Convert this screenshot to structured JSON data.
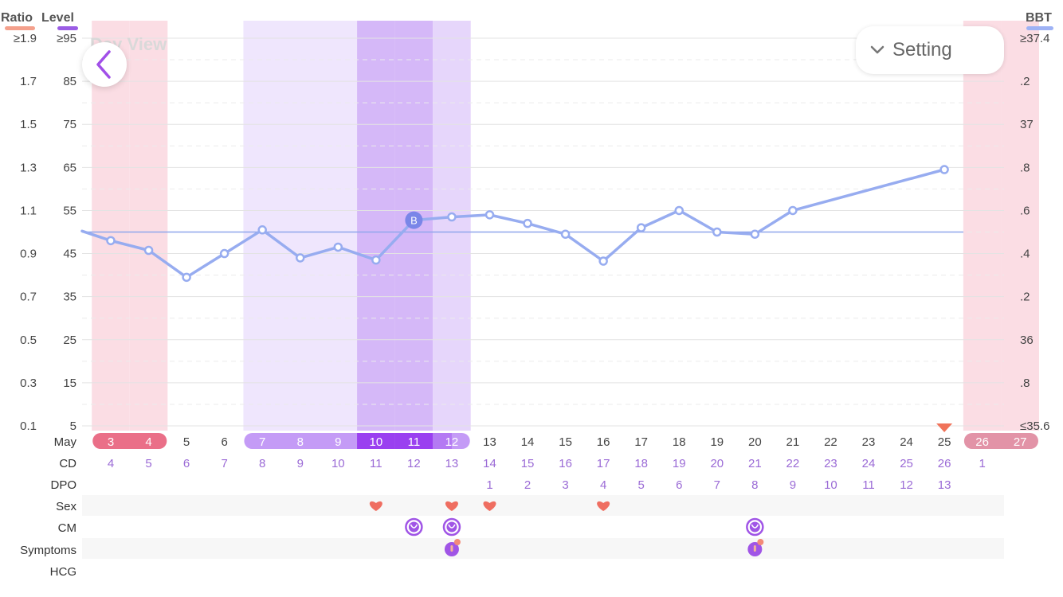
{
  "header": {
    "left_axis_titles": [
      "Ratio",
      "Level"
    ],
    "right_axis_title": "BBT",
    "watermark": "Day View",
    "setting_label": "Setting"
  },
  "legend_colors": {
    "ratio": "#f4a08c",
    "level": "#9b5de5",
    "bbt": "#9eb2f5"
  },
  "colors": {
    "period": "#fbdde4",
    "fertile": "#efe6fd",
    "peak": "#d5b8f8",
    "post_peak": "#e6d6fb",
    "line": "#97acf0",
    "coverline": "#8fa6ec",
    "period_pill": "#ea6f88",
    "next_period_pill": "#e293a7",
    "fertile_pill": "#c49bf6",
    "peak_pill": "#9a40f0",
    "row_text": "#9b6bd6",
    "heart": "#ef6e61",
    "badge": "#7a86e8"
  },
  "axes": {
    "ratio_ticks": [
      "≥1.9",
      "1.7",
      "1.5",
      "1.3",
      "1.1",
      "0.9",
      "0.7",
      "0.5",
      "0.3",
      "0.1"
    ],
    "level_ticks": [
      "≥95",
      "85",
      "75",
      "65",
      "55",
      "45",
      "35",
      "25",
      "15",
      "5"
    ],
    "bbt_ticks": [
      "≥37.4",
      ".2",
      "37",
      ".8",
      ".6",
      ".4",
      ".2",
      "36",
      ".8",
      "≤35.6"
    ]
  },
  "rows": {
    "month_label": "May",
    "cd_label": "CD",
    "dpo_label": "DPO",
    "sex_label": "Sex",
    "cm_label": "CM",
    "symptoms_label": "Symptoms",
    "hcg_label": "HCG"
  },
  "days": [
    "3",
    "4",
    "5",
    "6",
    "7",
    "8",
    "9",
    "10",
    "11",
    "12",
    "13",
    "14",
    "15",
    "16",
    "17",
    "18",
    "19",
    "20",
    "21",
    "22",
    "23",
    "24",
    "25",
    "26",
    "27"
  ],
  "cd": [
    "4",
    "5",
    "6",
    "7",
    "8",
    "9",
    "10",
    "11",
    "12",
    "13",
    "14",
    "15",
    "16",
    "17",
    "18",
    "19",
    "20",
    "21",
    "22",
    "23",
    "24",
    "25",
    "26",
    "1",
    ""
  ],
  "dpo": [
    "",
    "",
    "",
    "",
    "",
    "",
    "",
    "",
    "",
    "",
    "1",
    "2",
    "3",
    "4",
    "5",
    "6",
    "7",
    "8",
    "9",
    "10",
    "11",
    "12",
    "13",
    "",
    ""
  ],
  "day_types": [
    "period",
    "period",
    "none",
    "none",
    "fertile",
    "fertile",
    "fertile",
    "peak",
    "peak",
    "post",
    "none",
    "none",
    "none",
    "none",
    "none",
    "none",
    "none",
    "none",
    "none",
    "none",
    "none",
    "none",
    "none",
    "next",
    "next"
  ],
  "sex_days": [
    "10",
    "12",
    "13",
    "16"
  ],
  "cm_days": [
    "11",
    "12",
    "20"
  ],
  "symptom_days": [
    "12",
    "20"
  ],
  "chart_data": {
    "type": "line",
    "series": [
      {
        "name": "BBT",
        "x": [
          "3",
          "4",
          "5",
          "6",
          "7",
          "8",
          "9",
          "10",
          "11",
          "12",
          "13",
          "14",
          "15",
          "16",
          "17",
          "18",
          "19",
          "20",
          "21",
          "25"
        ],
        "y": [
          36.46,
          36.415,
          36.29,
          36.4,
          36.51,
          36.38,
          36.43,
          36.37,
          36.555,
          36.57,
          36.58,
          36.54,
          36.49,
          36.365,
          36.52,
          36.6,
          36.5,
          36.49,
          36.6,
          36.79
        ],
        "annotations": [
          {
            "x": "11",
            "label": "B"
          }
        ]
      }
    ],
    "coverline": 36.5,
    "ylim": [
      35.6,
      37.4
    ],
    "xlabel": "May",
    "ylabel": "BBT",
    "ovulation_marker_day": "25",
    "grid": true
  }
}
